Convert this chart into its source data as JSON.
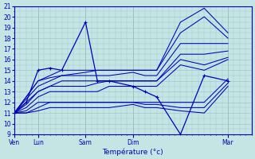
{
  "xlabel": "Température (°c)",
  "ylim": [
    9,
    21
  ],
  "bg_color": "#c5e5e5",
  "grid_color": "#a0c8c8",
  "line_color": "#0000bb",
  "xtick_labels": [
    "Ven",
    "Lun",
    "Sam",
    "Dim",
    "Mar"
  ],
  "xtick_positions": [
    0,
    6,
    18,
    30,
    54
  ],
  "xlim": [
    0,
    60
  ],
  "vline_positions": [
    0,
    6,
    18,
    30,
    54
  ],
  "x_hours": [
    0,
    3,
    6,
    9,
    12,
    18,
    21,
    24,
    30,
    33,
    36,
    42,
    48,
    54
  ],
  "series": [
    [
      11.0,
      12.5,
      14.0,
      14.5,
      15.0,
      15.0,
      15.0,
      15.0,
      15.0,
      15.0,
      15.0,
      19.5,
      20.8,
      18.5
    ],
    [
      11.0,
      12.5,
      14.0,
      14.3,
      14.5,
      14.8,
      15.0,
      15.0,
      15.0,
      15.0,
      15.0,
      18.5,
      20.0,
      18.0
    ],
    [
      11.0,
      12.3,
      13.5,
      14.0,
      14.5,
      14.5,
      14.5,
      14.5,
      14.8,
      14.5,
      14.5,
      17.5,
      17.5,
      17.5
    ],
    [
      11.0,
      12.0,
      13.0,
      13.5,
      14.0,
      14.0,
      14.0,
      14.0,
      14.0,
      14.0,
      14.0,
      16.5,
      16.5,
      16.8
    ],
    [
      11.0,
      11.8,
      13.0,
      13.5,
      13.5,
      13.5,
      13.8,
      14.0,
      14.0,
      14.0,
      14.0,
      16.0,
      15.5,
      16.2
    ],
    [
      11.0,
      11.5,
      12.5,
      13.0,
      13.0,
      13.0,
      13.0,
      13.5,
      13.5,
      13.5,
      13.5,
      15.5,
      15.0,
      16.0
    ],
    [
      11.0,
      11.2,
      12.0,
      12.0,
      12.0,
      12.0,
      12.0,
      12.0,
      12.0,
      12.0,
      12.0,
      12.0,
      12.0,
      14.2
    ],
    [
      11.0,
      11.0,
      11.5,
      12.0,
      12.0,
      12.0,
      12.0,
      12.0,
      12.0,
      11.8,
      11.8,
      11.5,
      11.5,
      13.8
    ],
    [
      11.0,
      11.0,
      11.2,
      11.5,
      11.5,
      11.5,
      11.5,
      11.5,
      11.8,
      11.5,
      11.5,
      11.2,
      11.0,
      13.5
    ],
    [
      11.0,
      12.0,
      15.0,
      15.2,
      15.0,
      19.5,
      14.0,
      14.0,
      13.5,
      13.0,
      12.5,
      9.0,
      14.5,
      14.0
    ]
  ],
  "marker_idx": 9
}
